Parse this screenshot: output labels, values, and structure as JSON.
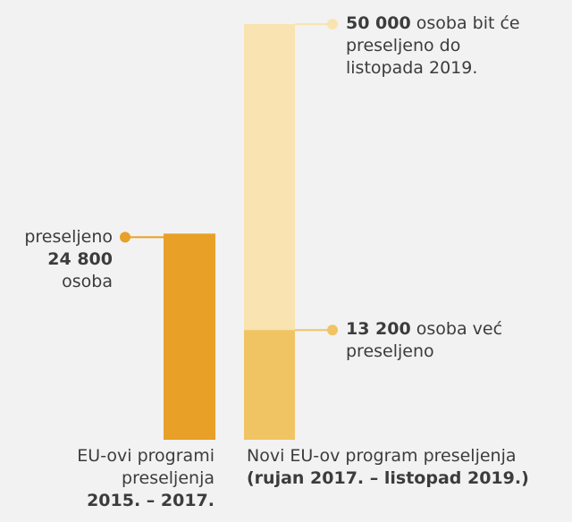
{
  "chart_data": {
    "type": "bar",
    "ylim": [
      0,
      50000
    ],
    "bars": [
      {
        "category": "EU-ovi programi preseljenja",
        "period": "2015. – 2017.",
        "value": 24800,
        "value_label": "24 800",
        "color": "#e8a026",
        "annotation_before": "preseljeno",
        "annotation_after": "osoba",
        "marker_color": "#e8a026"
      },
      {
        "category": "Novi EU-ov program preseljenja",
        "period": "(rujan 2017. – listopad 2019.)",
        "segments": [
          {
            "value": 50000,
            "value_label": "50 000",
            "color": "#f9e3b0",
            "marker_color": "#f9e3b0",
            "annotation": "osoba bit će preseljeno do listopada 2019."
          },
          {
            "value": 13200,
            "value_label": "13 200",
            "color": "#f0c463",
            "marker_color": "#f0c463",
            "annotation": "osoba već preseljeno"
          }
        ]
      }
    ]
  }
}
